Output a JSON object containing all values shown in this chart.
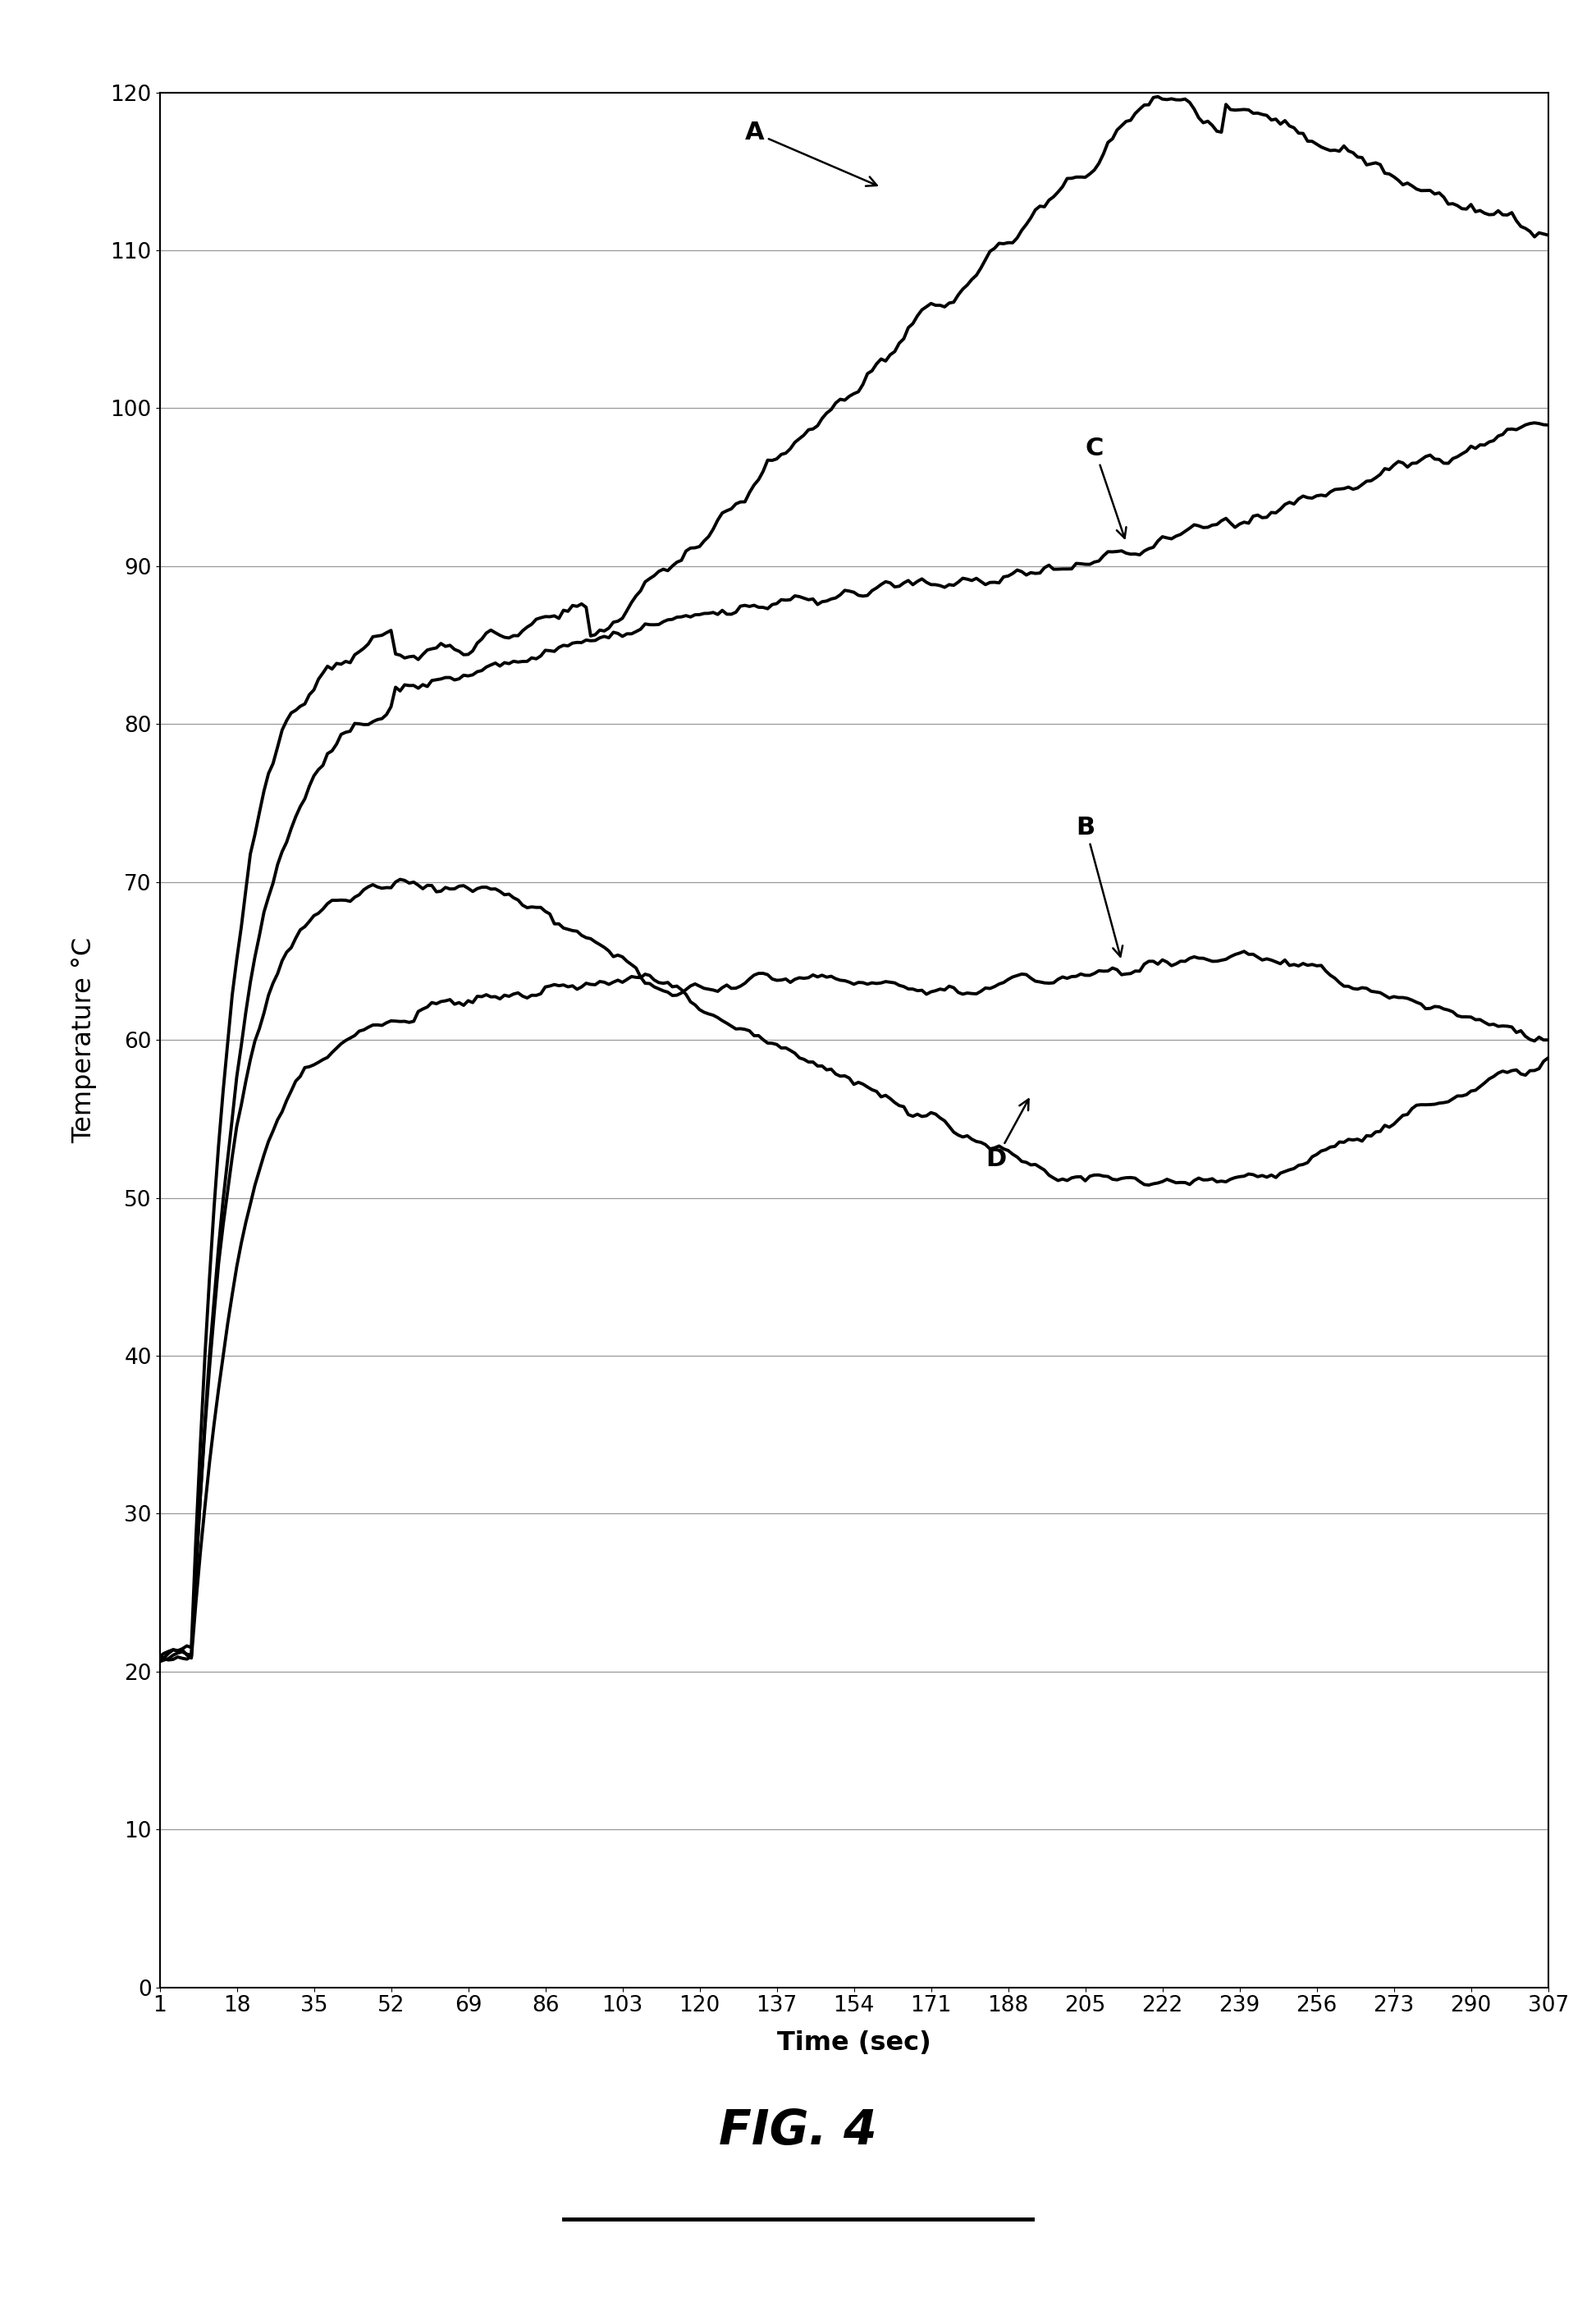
{
  "xlabel": "Time (sec)",
  "ylabel": "Temperature °C",
  "title": "FIG. 4",
  "xlim": [
    1,
    307
  ],
  "ylim": [
    0,
    120
  ],
  "xticks": [
    1,
    18,
    35,
    52,
    69,
    86,
    103,
    120,
    137,
    154,
    171,
    188,
    205,
    222,
    239,
    256,
    273,
    290,
    307
  ],
  "yticks": [
    0,
    10,
    20,
    30,
    40,
    50,
    60,
    70,
    80,
    90,
    100,
    110,
    120
  ],
  "background_color": "#ffffff",
  "line_color": "#000000",
  "line_width": 2.8,
  "label_A": "A",
  "label_B": "B",
  "label_C": "C",
  "label_D": "D",
  "label_fontsize": 22,
  "tick_fontsize": 19,
  "axis_label_fontsize": 23,
  "title_fontsize": 42
}
